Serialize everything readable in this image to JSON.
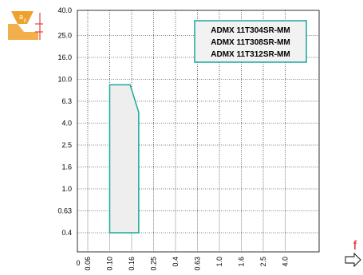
{
  "icons": {
    "depth_of_cut_icon": "depth-of-cut-insert-icon",
    "depth_of_cut_label": "a",
    "depth_of_cut_sub": "p",
    "feed_label": "f",
    "feed_arrow_icon": "right-arrow-icon"
  },
  "colors": {
    "icon_fill": "#f0a12c",
    "feed_label": "#e2231a",
    "region_fill": "#eeeeee",
    "region_stroke": "#1aa89a",
    "legend_border": "#1aa89a",
    "legend_fill": "#f2f2f2"
  },
  "chart_data": {
    "type": "area",
    "x_ticks": [
      "0",
      "0.06",
      "0.10",
      "0.16",
      "0.25",
      "0.4",
      "0.63",
      "1.0",
      "1.6",
      "2.5",
      "4.0"
    ],
    "y_ticks": [
      "0.4",
      "0.63",
      "1.0",
      "1.6",
      "2.5",
      "4.0",
      "6.3",
      "10.0",
      "16.0",
      "25.0",
      "40.0"
    ],
    "grid": true,
    "legend_position": "top-right",
    "legend": [
      "ADMX 11T304SR-MM",
      "ADMX 11T308SR-MM",
      "ADMX 11T312SR-MM"
    ],
    "series": [
      {
        "region": [
          {
            "x": 0.1,
            "y": 8.9
          },
          {
            "x": 0.155,
            "y": 8.9
          },
          {
            "x": 0.185,
            "y": 5.0
          },
          {
            "x": 0.185,
            "y": 0.32
          },
          {
            "x": 0.1,
            "y": 0.32
          }
        ]
      }
    ]
  }
}
